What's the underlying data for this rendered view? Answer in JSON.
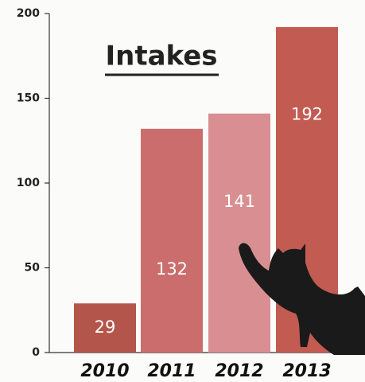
{
  "chart_data": {
    "type": "bar",
    "title": "Intakes",
    "categories": [
      "2010",
      "2011",
      "2012",
      "2013"
    ],
    "values": [
      29,
      132,
      141,
      192
    ],
    "colors": [
      "#b4554b",
      "#cb6d6c",
      "#d98f92",
      "#c25b51"
    ],
    "ylim": [
      0,
      200
    ],
    "yticks": [
      0,
      50,
      100,
      150,
      200
    ],
    "grid": false
  }
}
